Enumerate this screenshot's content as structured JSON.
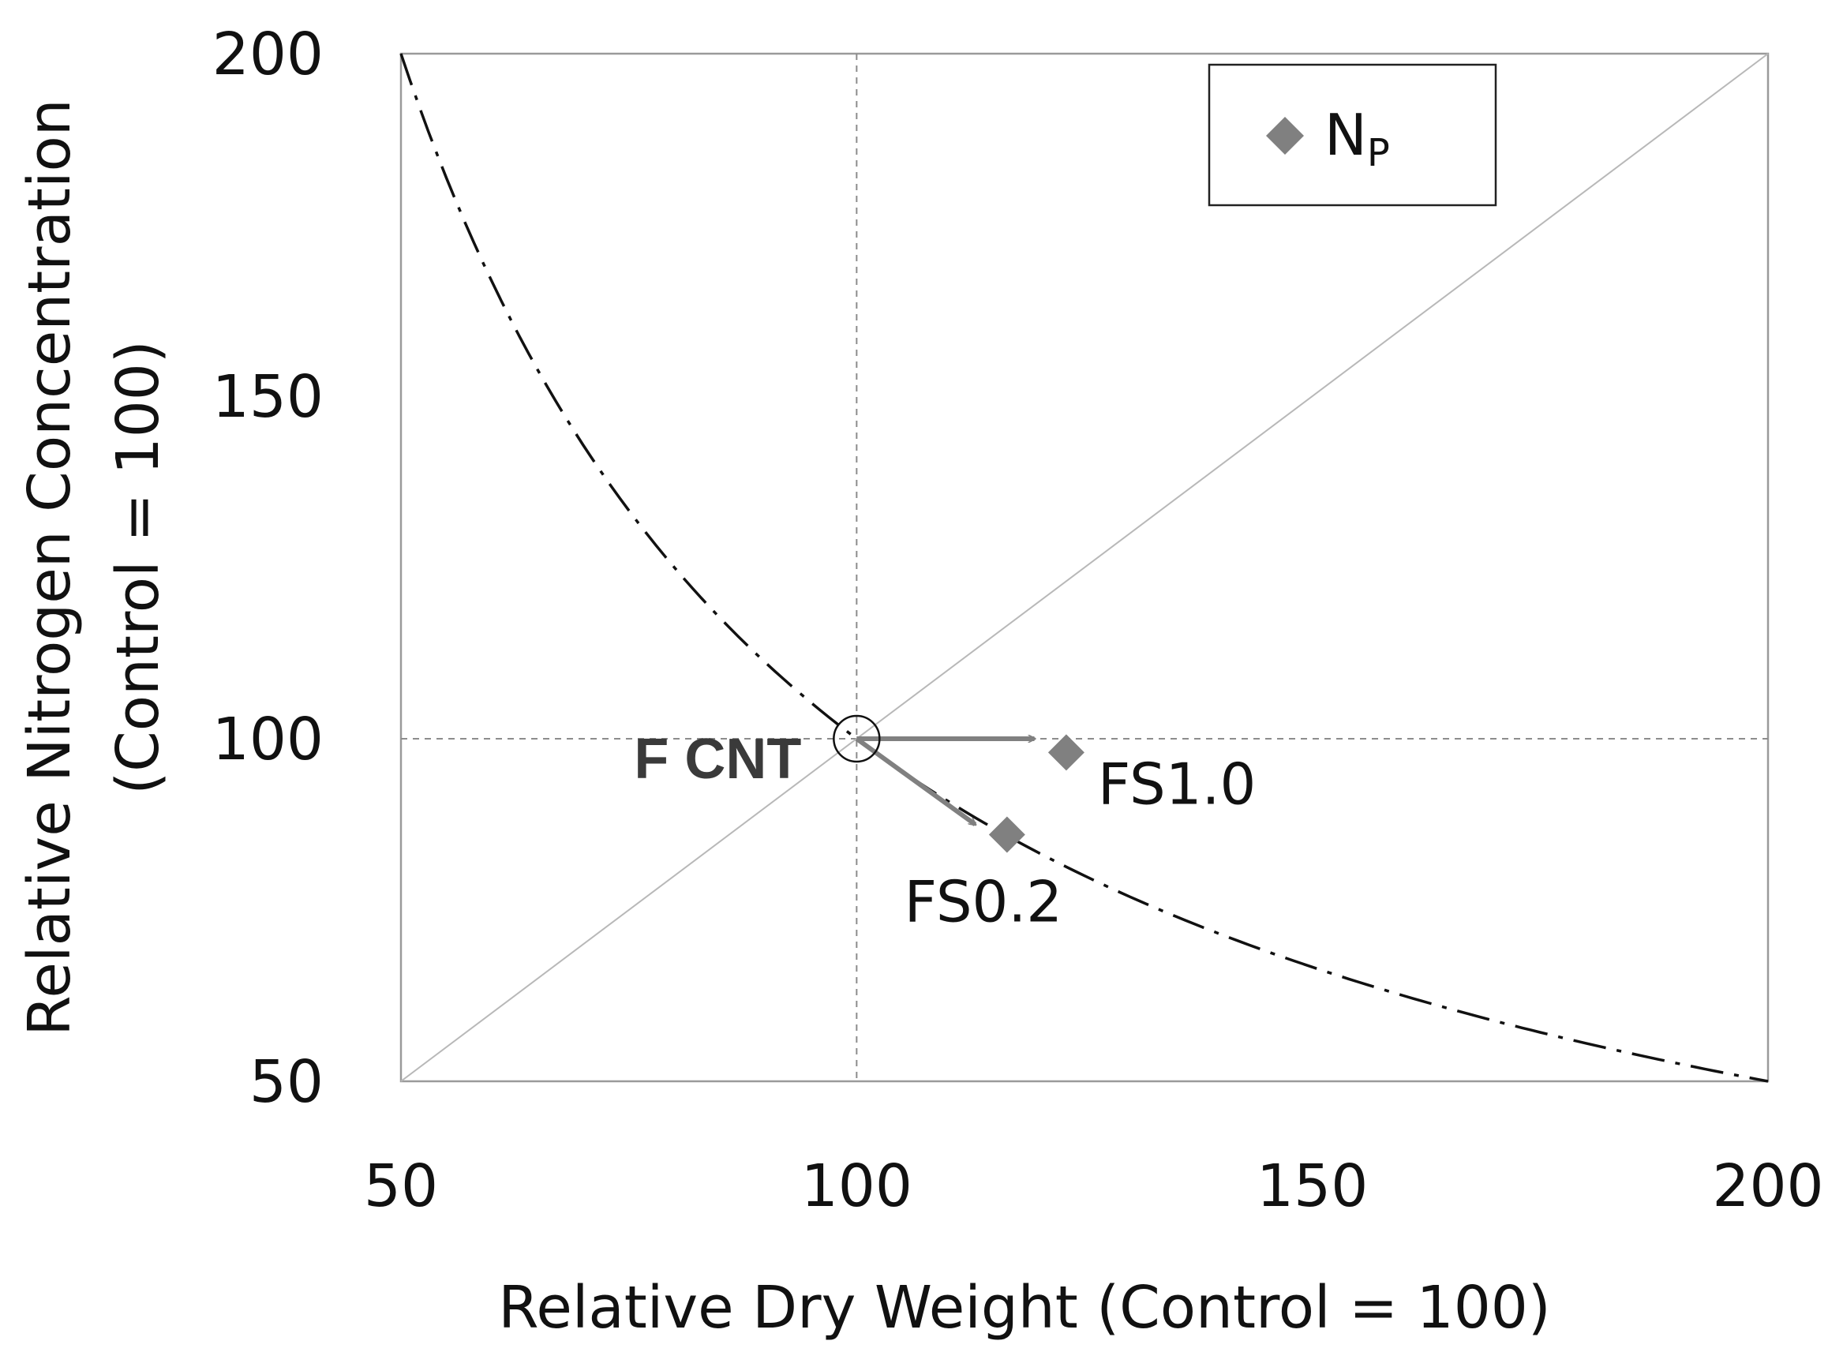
{
  "chart_data": {
    "type": "scatter",
    "xlabel": "Relative Dry Weight (Control = 100)",
    "ylabel_line1": "Relative Nitrogen Concentration",
    "ylabel_line2": "(Control = 100)",
    "xlim": [
      50,
      200
    ],
    "ylim": [
      50,
      200
    ],
    "xticks": [
      50,
      100,
      150,
      200
    ],
    "yticks": [
      50,
      100,
      150,
      200
    ],
    "reference_lines": {
      "vertical_x": 100,
      "horizontal_y": 100,
      "diagonal": "y = x",
      "isoquant": "x * y = 10000"
    },
    "origin": {
      "label": "F CNT",
      "x": 100,
      "y": 100
    },
    "series": [
      {
        "name": "N",
        "name_sub": "P",
        "color": "#808080",
        "marker": "diamond",
        "points": [
          {
            "label": "FS1.0",
            "x": 123,
            "y": 98
          },
          {
            "label": "FS0.2",
            "x": 116.5,
            "y": 86
          }
        ]
      }
    ],
    "arrows": [
      {
        "from": [
          100,
          100
        ],
        "to": [
          119.5,
          100
        ]
      },
      {
        "from": [
          100,
          100
        ],
        "to": [
          113,
          87.5
        ]
      }
    ],
    "legend_position": "top-right"
  }
}
